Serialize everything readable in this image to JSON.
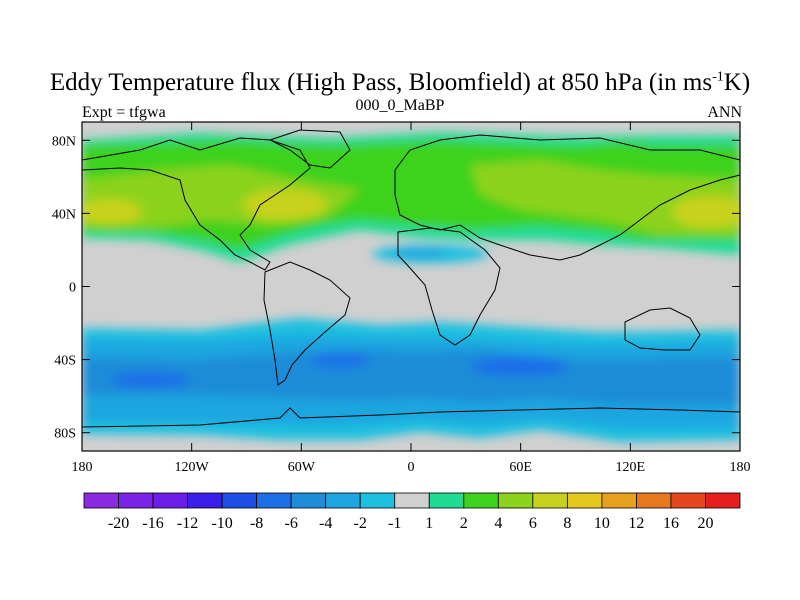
{
  "title": {
    "main": "Eddy Temperature flux (High Pass, Bloomfield) at 850 hPa (in ms",
    "sup": "-1",
    "end": "K)"
  },
  "subtitle_left": "Expt = tfgwa",
  "subtitle_center": "000_0_MaBP",
  "subtitle_right": "ANN",
  "x_ticks": [
    {
      "lon": -180,
      "label": "180"
    },
    {
      "lon": -120,
      "label": "120W"
    },
    {
      "lon": -60,
      "label": "60W"
    },
    {
      "lon": 0,
      "label": "0"
    },
    {
      "lon": 60,
      "label": "60E"
    },
    {
      "lon": 120,
      "label": "120E"
    },
    {
      "lon": 180,
      "label": "180"
    }
  ],
  "y_ticks": [
    {
      "lat": 80,
      "label": "80N"
    },
    {
      "lat": 40,
      "label": "40N"
    },
    {
      "lat": 0,
      "label": "0"
    },
    {
      "lat": -40,
      "label": "40S"
    },
    {
      "lat": -80,
      "label": "80S"
    }
  ],
  "colorbar": {
    "colors": [
      "#8a2be2",
      "#7a22e6",
      "#6a1ee8",
      "#3c1ee8",
      "#1e4ee8",
      "#1e6ee8",
      "#1e8cd8",
      "#1ea6e0",
      "#1ec0e0",
      "#d0d0d0",
      "#1edc96",
      "#3cd21e",
      "#8cd21e",
      "#c8d21e",
      "#e6c81e",
      "#e6a01e",
      "#e6781e",
      "#e6461e",
      "#e61e1e"
    ],
    "labels": [
      "-20",
      "-16",
      "-12",
      "-10",
      "-8",
      "-6",
      "-4",
      "-2",
      "-1",
      "1",
      "2",
      "4",
      "6",
      "8",
      "10",
      "12",
      "16",
      "20"
    ]
  }
}
